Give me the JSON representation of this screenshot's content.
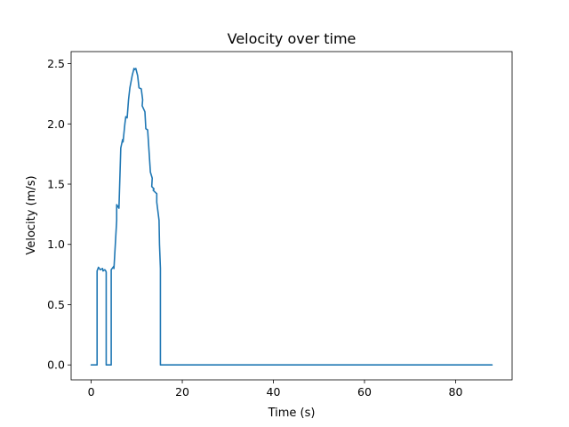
{
  "chart_data": {
    "type": "line",
    "title": "Velocity over time",
    "xlabel": "Time (s)",
    "ylabel": "Velocity (m/s)",
    "xlim": [
      -4.4,
      92.4
    ],
    "ylim": [
      -0.124,
      2.6
    ],
    "xticks": [
      0,
      20,
      40,
      60,
      80
    ],
    "xtick_labels": [
      "0",
      "20",
      "40",
      "60",
      "80"
    ],
    "yticks": [
      0.0,
      0.5,
      1.0,
      1.5,
      2.0,
      2.5
    ],
    "ytick_labels": [
      "0.0",
      "0.5",
      "1.0",
      "1.5",
      "2.0",
      "2.5"
    ],
    "grid": false,
    "series_color": "#1f77b4",
    "series": [
      {
        "x": [
          0.0,
          1.3,
          1.3,
          1.6,
          2.0,
          2.5,
          2.6,
          3.0,
          3.2,
          3.3,
          3.3,
          4.4,
          4.4,
          5.0,
          5.0,
          5.6,
          5.6,
          6.1,
          6.5,
          6.9,
          7.0,
          7.4,
          7.6,
          7.9,
          8.2,
          8.5,
          9.0,
          9.4,
          9.5,
          9.8,
          10.2,
          10.5,
          11.0,
          11.3,
          11.2,
          11.8,
          12.0,
          12.4,
          13.0,
          13.4,
          13.3,
          13.8,
          13.6,
          14.4,
          14.4,
          14.9,
          15.0,
          15.2,
          15.2,
          88.0
        ],
        "y": [
          0.0,
          0.0,
          0.78,
          0.81,
          0.79,
          0.8,
          0.78,
          0.79,
          0.78,
          0.77,
          0.0,
          0.0,
          0.79,
          0.82,
          0.8,
          1.2,
          1.33,
          1.3,
          1.8,
          1.87,
          1.85,
          2.0,
          2.06,
          2.05,
          2.2,
          2.3,
          2.4,
          2.46,
          2.45,
          2.46,
          2.4,
          2.3,
          2.29,
          2.2,
          2.15,
          2.1,
          1.96,
          1.95,
          1.6,
          1.55,
          1.48,
          1.46,
          1.45,
          1.42,
          1.35,
          1.2,
          1.0,
          0.8,
          0.0,
          0.0
        ]
      }
    ]
  }
}
